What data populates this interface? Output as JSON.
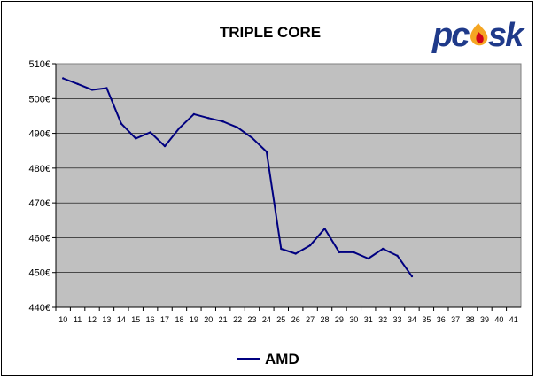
{
  "logo": {
    "text_before": "pc",
    "text_after": "sk",
    "color": "#1f3a8a",
    "flame_color": "#f5a623",
    "flame_inner_color": "#d0021b"
  },
  "chart_data": {
    "type": "line",
    "title": "TRIPLE CORE",
    "xlabel": "",
    "ylabel": "",
    "categories": [
      "10",
      "11",
      "12",
      "13",
      "14",
      "15",
      "16",
      "17",
      "18",
      "19",
      "20",
      "21",
      "22",
      "23",
      "24",
      "25",
      "26",
      "27",
      "28",
      "29",
      "30",
      "31",
      "32",
      "33",
      "34",
      "35",
      "36",
      "37",
      "38",
      "39",
      "40",
      "41"
    ],
    "ylim": [
      440,
      510
    ],
    "yticks": [
      440,
      450,
      460,
      470,
      480,
      490,
      500,
      510
    ],
    "y_unit_suffix": "€",
    "grid": true,
    "legend_position": "bottom",
    "plot_background": "#c0c0c0",
    "series": [
      {
        "name": "AMD",
        "color": "#000080",
        "values": [
          505.8,
          504.2,
          502.5,
          503.0,
          492.8,
          488.5,
          490.3,
          486.3,
          491.5,
          495.5,
          494.4,
          493.4,
          491.7,
          488.7,
          484.7,
          456.8,
          455.4,
          457.8,
          462.6,
          455.8,
          455.8,
          454.0,
          456.8,
          454.8,
          448.9,
          null,
          null,
          null,
          null,
          null,
          null,
          null
        ]
      }
    ]
  }
}
